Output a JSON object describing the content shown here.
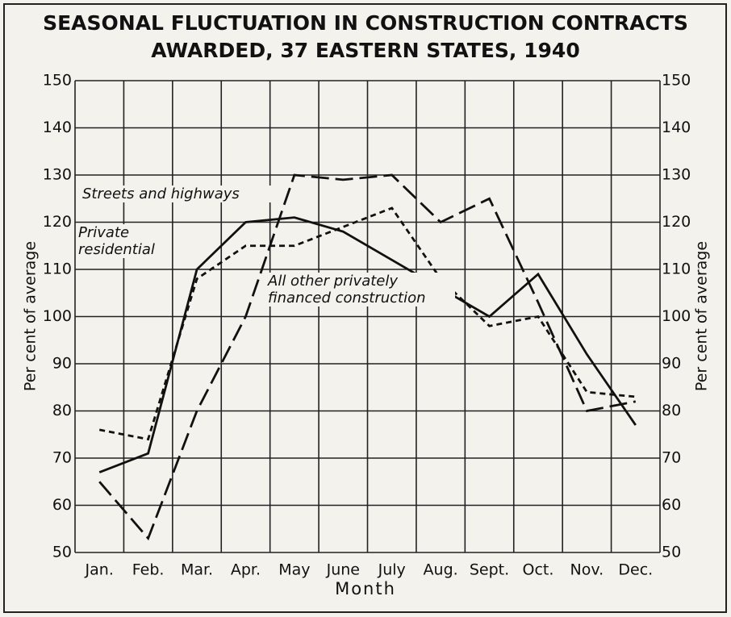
{
  "chart_data": {
    "type": "line",
    "title": [
      "SEASONAL FLUCTUATION IN CONSTRUCTION CONTRACTS",
      "AWARDED, 37 EASTERN STATES, 1940"
    ],
    "xlabel": "Month",
    "ylabel": "Per cent of average",
    "y2label": "Per cent of average",
    "categories": [
      "Jan.",
      "Feb.",
      "Mar.",
      "Apr.",
      "May",
      "June",
      "July",
      "Aug.",
      "Sept.",
      "Oct.",
      "Nov.",
      "Dec."
    ],
    "series": [
      {
        "name": "Streets and highways",
        "color": "#111111",
        "dash": "22 8",
        "values": [
          65,
          53,
          80,
          100,
          130,
          129,
          130,
          120,
          125,
          103,
          80,
          82
        ]
      },
      {
        "name": "Private residential",
        "color": "#111111",
        "dash": "7 5",
        "values": [
          76,
          74,
          108,
          115,
          115,
          119,
          123,
          108,
          98,
          100,
          84,
          83
        ]
      },
      {
        "name": "All other privately financed construction",
        "color": "#111111",
        "dash": "none",
        "values": [
          67,
          71,
          110,
          120,
          121,
          118,
          112,
          106,
          100,
          109,
          92,
          77
        ]
      }
    ],
    "ylim": [
      50,
      150
    ],
    "yticks": [
      50,
      60,
      70,
      80,
      90,
      100,
      110,
      120,
      130,
      140,
      150
    ],
    "y2lim": [
      50,
      150
    ],
    "y2ticks": [
      50,
      60,
      70,
      80,
      90,
      100,
      110,
      120,
      130,
      140,
      150
    ],
    "grid": true
  }
}
